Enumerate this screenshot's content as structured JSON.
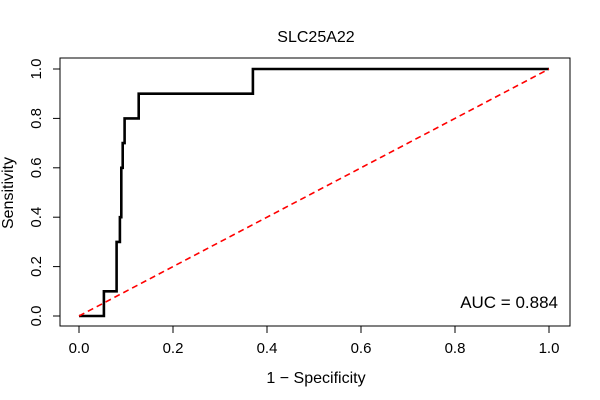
{
  "chart_data": {
    "type": "line",
    "title": "SLC25A22",
    "xlabel": "1 − Specificity",
    "ylabel": "Sensitivity",
    "xlim": [
      0,
      1
    ],
    "ylim": [
      0,
      1
    ],
    "x_ticks": [
      0.0,
      0.2,
      0.4,
      0.6,
      0.8,
      1.0
    ],
    "x_tick_labels": [
      "0.0",
      "0.2",
      "0.4",
      "0.6",
      "0.8",
      "1.0"
    ],
    "y_ticks": [
      0.0,
      0.2,
      0.4,
      0.6,
      0.8,
      1.0
    ],
    "y_tick_labels": [
      "0.0",
      "0.2",
      "0.4",
      "0.6",
      "0.8",
      "1.0"
    ],
    "grid": false,
    "annotation": "AUC = 0.884",
    "series": [
      {
        "color": "#000000",
        "style": "solid-step",
        "x": [
          0.0,
          0.053,
          0.053,
          0.08,
          0.08,
          0.087,
          0.087,
          0.09,
          0.09,
          0.093,
          0.093,
          0.097,
          0.097,
          0.127,
          0.127,
          0.37,
          0.37,
          1.0
        ],
        "y": [
          0.0,
          0.0,
          0.1,
          0.1,
          0.3,
          0.3,
          0.4,
          0.4,
          0.6,
          0.6,
          0.7,
          0.7,
          0.8,
          0.8,
          0.9,
          0.9,
          1.0,
          1.0
        ]
      },
      {
        "color": "#ff0000",
        "style": "dashed",
        "x": [
          0.0,
          1.0
        ],
        "y": [
          0.0,
          1.0
        ]
      }
    ]
  }
}
